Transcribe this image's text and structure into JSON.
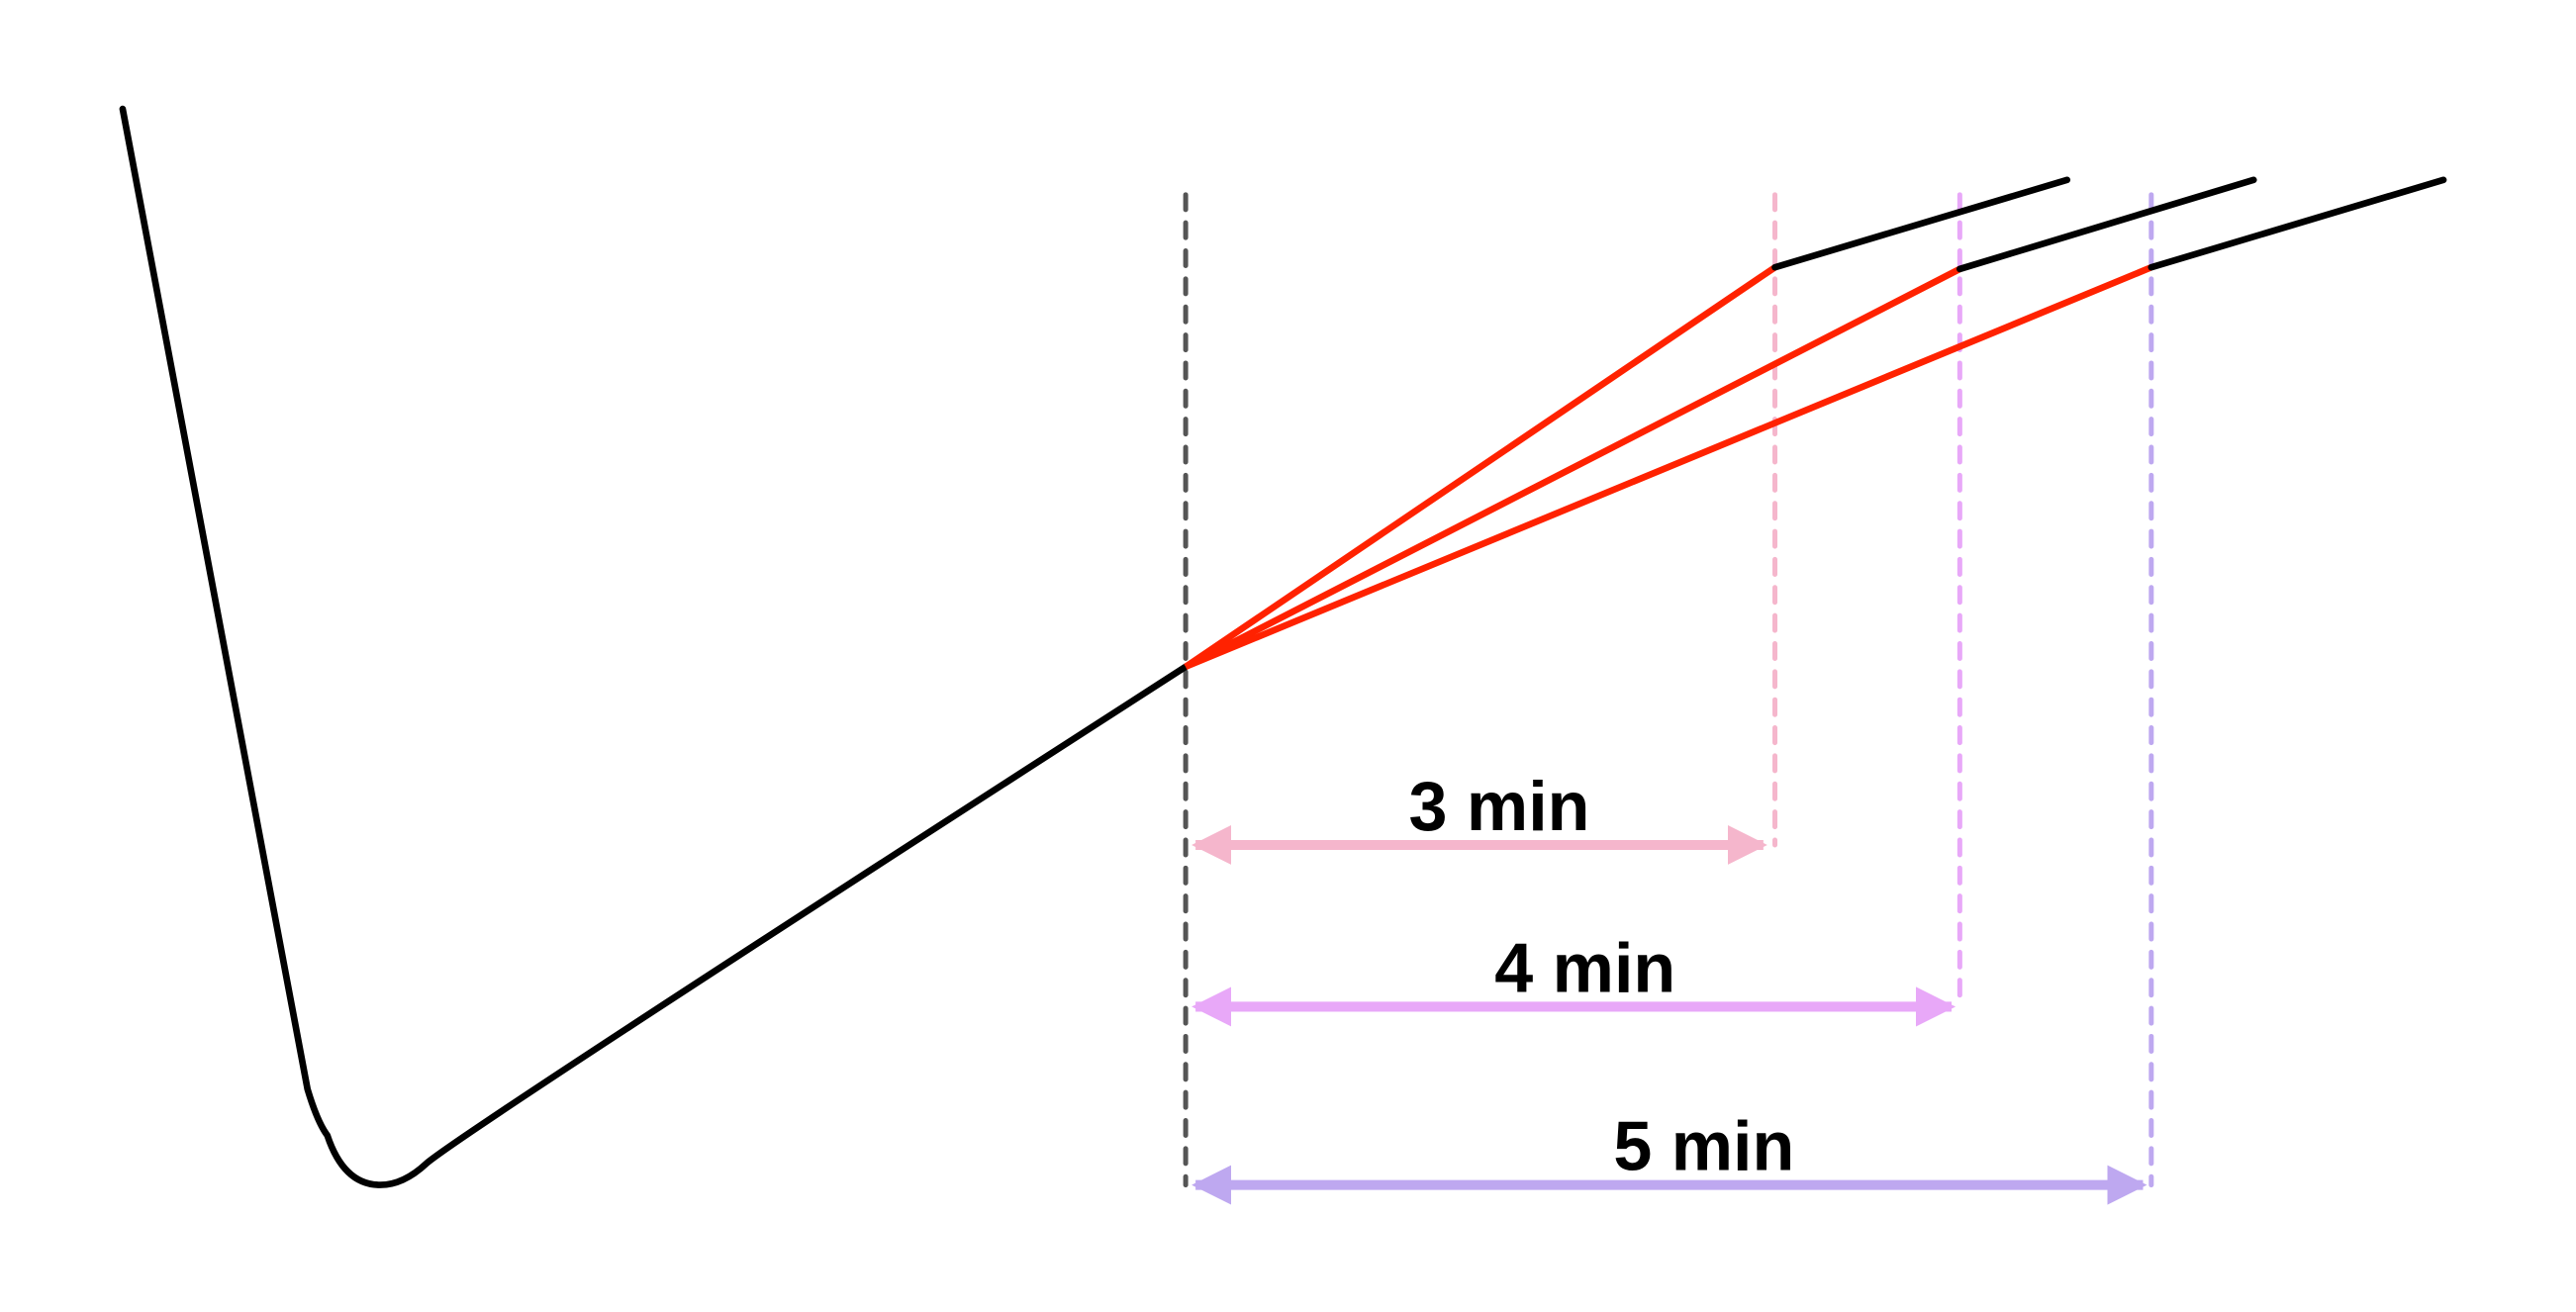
{
  "colors": {
    "curve": "#000000",
    "fan_lines": "#ff2200",
    "reference_line": "#555555",
    "interval_3": "#f5b6cc",
    "interval_4": "#e8a8f8",
    "interval_5": "#bea8f0"
  },
  "intervals": [
    {
      "label": "3 min"
    },
    {
      "label": "4 min"
    },
    {
      "label": "5 min"
    }
  ]
}
